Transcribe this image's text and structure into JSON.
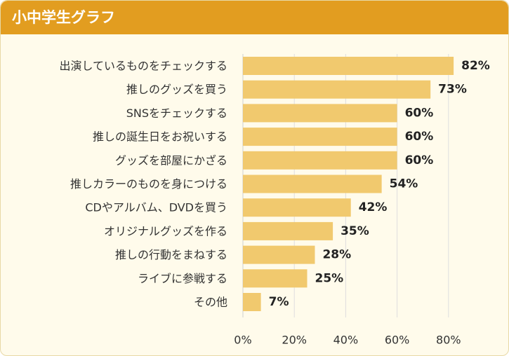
{
  "header": {
    "title": "小中学生グラフ"
  },
  "colors": {
    "header_bg": "#e29d20",
    "bar": "#f1c96e",
    "grid": "#dedede",
    "background": "#fffbeb"
  },
  "chart_data": {
    "type": "bar",
    "orientation": "horizontal",
    "title": "小中学生グラフ",
    "xlabel": "",
    "ylabel": "",
    "xlim": [
      0,
      82
    ],
    "x_ticks": [
      0,
      20,
      40,
      60,
      80
    ],
    "tick_labels": [
      "0%",
      "20%",
      "40%",
      "60%",
      "80%"
    ],
    "grid": true,
    "categories": [
      "出演しているものをチェックする",
      "推しのグッズを買う",
      "SNSをチェックする",
      "推しの誕生日をお祝いする",
      "グッズを部屋にかざる",
      "推しカラーのものを身につける",
      "CDやアルバム、DVDを買う",
      "オリジナルグッズを作る",
      "推しの行動をまねする",
      "ライブに参戦する",
      "その他"
    ],
    "values": [
      82,
      73,
      60,
      60,
      60,
      54,
      42,
      35,
      28,
      25,
      7
    ],
    "value_labels": [
      "82%",
      "73%",
      "60%",
      "60%",
      "60%",
      "54%",
      "42%",
      "35%",
      "28%",
      "25%",
      "7%"
    ]
  }
}
